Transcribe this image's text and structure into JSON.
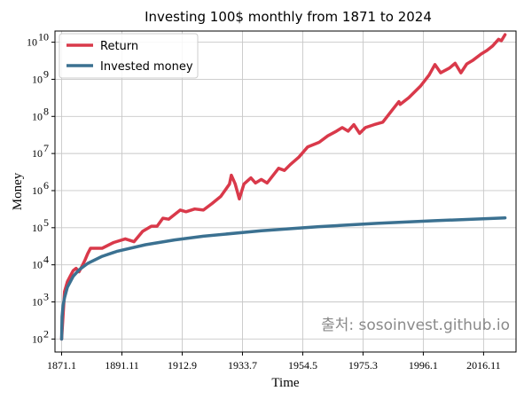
{
  "chart_data": {
    "type": "line",
    "title": "Investing 100$ monthly from 1871 to 2024",
    "xlabel": "Time",
    "ylabel": "Money",
    "y_scale": "log",
    "ylim": [
      100.0,
      20000000000.0
    ],
    "grid": true,
    "legend_position": "top-left",
    "x_range": [
      "1871.1",
      "2024.4"
    ],
    "x_ticks": [
      "1871.1",
      "1891.11",
      "1912.9",
      "1933.7",
      "1954.5",
      "1975.3",
      "1996.1",
      "2016.11"
    ],
    "y_ticks": [
      {
        "value": 100,
        "exp": "2"
      },
      {
        "value": 1000,
        "exp": "3"
      },
      {
        "value": 10000,
        "exp": "4"
      },
      {
        "value": 100000,
        "exp": "5"
      },
      {
        "value": 1000000,
        "exp": "6"
      },
      {
        "value": 10000000,
        "exp": "7"
      },
      {
        "value": 100000000,
        "exp": "8"
      },
      {
        "value": 1000000000,
        "exp": "9"
      },
      {
        "value": 10000000000,
        "exp": "10"
      }
    ],
    "series": [
      {
        "name": "Return",
        "color": "#d9394a",
        "points": [
          [
            "1871.1",
            100
          ],
          [
            "1872.1",
            1900
          ],
          [
            "1873.1",
            3500
          ],
          [
            "1874.1",
            5000
          ],
          [
            "1875.1",
            7000
          ],
          [
            "1876.1",
            8000
          ],
          [
            "1877.1",
            6500
          ],
          [
            "1878.1",
            9000
          ],
          [
            "1879.1",
            13000
          ],
          [
            "1880.1",
            20000
          ],
          [
            "1881.1",
            28000
          ],
          [
            "1885.1",
            28000
          ],
          [
            "1889.1",
            40000
          ],
          [
            "1893.1",
            50000
          ],
          [
            "1896.1",
            42000
          ],
          [
            "1899.1",
            80000
          ],
          [
            "1902.1",
            110000
          ],
          [
            "1904.1",
            110000
          ],
          [
            "1906.1",
            180000
          ],
          [
            "1908.1",
            170000
          ],
          [
            "1912.1",
            300000
          ],
          [
            "1914.1",
            270000
          ],
          [
            "1917.1",
            320000
          ],
          [
            "1920.1",
            300000
          ],
          [
            "1923.1",
            450000
          ],
          [
            "1926.1",
            700000
          ],
          [
            "1929.1",
            1500000
          ],
          [
            "1929.9",
            2600000
          ],
          [
            "1931.1",
            1500000
          ],
          [
            "1932.6",
            600000
          ],
          [
            "1934.1",
            1500000
          ],
          [
            "1936.6",
            2200000
          ],
          [
            "1938.1",
            1600000
          ],
          [
            "1940.1",
            2000000
          ],
          [
            "1942.1",
            1600000
          ],
          [
            "1946.1",
            4000000
          ],
          [
            "1948.1",
            3500000
          ],
          [
            "1950.1",
            5000000
          ],
          [
            "1953.1",
            8000000
          ],
          [
            "1956.1",
            15000000
          ],
          [
            "1960.1",
            20000000
          ],
          [
            "1963.1",
            30000000
          ],
          [
            "1966.1",
            40000000
          ],
          [
            "1968.1",
            50000000
          ],
          [
            "1970.1",
            40000000
          ],
          [
            "1972.1",
            60000000
          ],
          [
            "1974.1",
            35000000
          ],
          [
            "1976.1",
            50000000
          ],
          [
            "1979.1",
            60000000
          ],
          [
            "1982.1",
            70000000
          ],
          [
            "1985.1",
            140000000
          ],
          [
            "1987.8",
            250000000
          ],
          [
            "1988.1",
            210000000
          ],
          [
            "1991.1",
            320000000
          ],
          [
            "1995.1",
            650000000
          ],
          [
            "1998.1",
            1300000000
          ],
          [
            "2000.1",
            2500000000
          ],
          [
            "2002.1",
            1500000000
          ],
          [
            "2005.1",
            2000000000
          ],
          [
            "2007.1",
            2700000000
          ],
          [
            "2009.1",
            1500000000
          ],
          [
            "2011.1",
            2600000000
          ],
          [
            "2013.1",
            3200000000
          ],
          [
            "2016.1",
            4800000000
          ],
          [
            "2018.1",
            6000000000
          ],
          [
            "2020.1",
            8000000000
          ],
          [
            "2022.1",
            12000000000
          ],
          [
            "2023.1",
            11000000000
          ],
          [
            "2024.4",
            16000000000
          ]
        ]
      },
      {
        "name": "Invested money",
        "color": "#3b7191",
        "points": [
          [
            "1871.1",
            100
          ],
          [
            "1871.3",
            400
          ],
          [
            "1871.7",
            800
          ],
          [
            "1872.1",
            1300
          ],
          [
            "1873.1",
            2500
          ],
          [
            "1875.1",
            4900
          ],
          [
            "1877.1",
            7300
          ],
          [
            "1880.1",
            10900
          ],
          [
            "1885.1",
            16900
          ],
          [
            "1890.1",
            22900
          ],
          [
            "1900.1",
            34900
          ],
          [
            "1910.1",
            46900
          ],
          [
            "1920.1",
            58900
          ],
          [
            "1940.1",
            82900
          ],
          [
            "1960.1",
            106900
          ],
          [
            "1980.1",
            130900
          ],
          [
            "2000.1",
            154900
          ],
          [
            "2024.4",
            184000
          ]
        ]
      }
    ]
  },
  "watermark": "출처: sosoinvest.github.io"
}
